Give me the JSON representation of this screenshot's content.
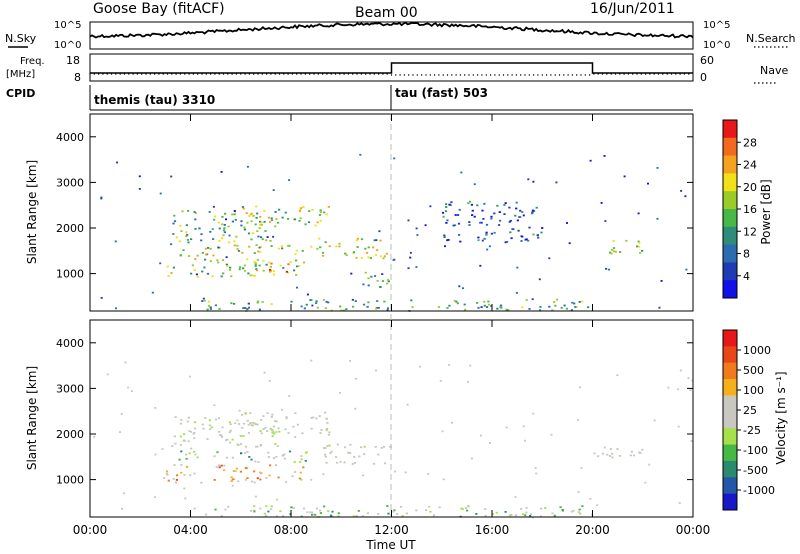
{
  "header": {
    "station": "Goose Bay (fitACF)",
    "beam": "Beam 00",
    "date": "16/Jun/2011"
  },
  "nsky_panel": {
    "left_label": "N.Sky",
    "left_ticks": [
      "10^5",
      "10^0"
    ],
    "right_ticks": [
      "10^5",
      "10^0"
    ],
    "right_label": "N.Search"
  },
  "freq_panel": {
    "left_label_1": "Freq.",
    "left_label_2": "[MHz]",
    "left_ticks": [
      "18",
      "8"
    ],
    "right_ticks": [
      "60",
      "0"
    ],
    "right_label": "Nave"
  },
  "cpid_panel": {
    "label": "CPID",
    "program_1": "themis (tau) 3310",
    "program_2": "tau (fast) 503"
  },
  "chart_data": [
    {
      "type": "heatmap",
      "title": "",
      "ylabel": "Slant Range [km]",
      "ylim": [
        180,
        4500
      ],
      "y_ticks": [
        "1000",
        "2000",
        "3000",
        "4000"
      ],
      "colorbar_label": "Power [dB]",
      "colorbar_ticks": [
        "28",
        "24",
        "20",
        "16",
        "12",
        "8",
        "4"
      ],
      "colorbar_colors": [
        "#1010e8",
        "#1f3cb4",
        "#2b6bb0",
        "#2f8c7a",
        "#48b848",
        "#9acb2a",
        "#f2e01a",
        "#f5a21e",
        "#f26a1e",
        "#e81818"
      ],
      "regions": [
        {
          "t_start": 3.2,
          "t_end": 7.5,
          "r_start": 1700,
          "r_end": 2400,
          "level": 0.45
        },
        {
          "t_start": 6.0,
          "t_end": 9.5,
          "r_start": 2000,
          "r_end": 2500,
          "level": 0.55
        },
        {
          "t_start": 9.0,
          "t_end": 12.0,
          "r_start": 1350,
          "r_end": 1800,
          "level": 0.6
        },
        {
          "t_start": 3.5,
          "t_end": 9.0,
          "r_start": 1400,
          "r_end": 1650,
          "level": 0.6
        },
        {
          "t_start": 3.0,
          "t_end": 8.5,
          "r_start": 950,
          "r_end": 1350,
          "level": 0.5
        },
        {
          "t_start": 6.5,
          "t_end": 8.0,
          "r_start": 1050,
          "r_end": 1350,
          "level": 0.75
        },
        {
          "t_start": 10.5,
          "t_end": 12.0,
          "r_start": 700,
          "r_end": 1050,
          "level": 0.4
        },
        {
          "t_start": 20.0,
          "t_end": 22.0,
          "r_start": 1450,
          "r_end": 1750,
          "level": 0.55
        },
        {
          "t_start": 14.0,
          "t_end": 18.0,
          "r_start": 1700,
          "r_end": 2600,
          "level": 0.2
        },
        {
          "t_start": 4.5,
          "t_end": 20.0,
          "r_start": 200,
          "r_end": 450,
          "level": 0.4
        }
      ]
    },
    {
      "type": "heatmap",
      "title": "",
      "ylabel": "Slant Range [km]",
      "ylim": [
        180,
        4500
      ],
      "y_ticks": [
        "1000",
        "2000",
        "3000",
        "4000"
      ],
      "colorbar_label": "Velocity [m s⁻¹]",
      "colorbar_ticks": [
        "1000",
        "500",
        "100",
        "25",
        "-25",
        "-100",
        "-500",
        "-1000"
      ],
      "colorbar_colors": [
        "#1818c8",
        "#2356a8",
        "#2a8a6e",
        "#45b845",
        "#a6e04a",
        "#c8c8c0",
        "#c8c8c0",
        "#f5b01e",
        "#f27a1e",
        "#e84818",
        "#e81818"
      ],
      "regions": [
        {
          "t_start": 3.2,
          "t_end": 7.5,
          "r_start": 1700,
          "r_end": 2400,
          "level": 0.5
        },
        {
          "t_start": 6.0,
          "t_end": 9.5,
          "r_start": 2000,
          "r_end": 2500,
          "level": 0.5
        },
        {
          "t_start": 9.0,
          "t_end": 12.0,
          "r_start": 1350,
          "r_end": 1800,
          "level": 0.5
        },
        {
          "t_start": 3.5,
          "t_end": 9.0,
          "r_start": 1400,
          "r_end": 1650,
          "level": 0.3
        },
        {
          "t_start": 3.0,
          "t_end": 8.5,
          "r_start": 950,
          "r_end": 1350,
          "level": 0.75
        },
        {
          "t_start": 20.0,
          "t_end": 22.0,
          "r_start": 1450,
          "r_end": 1750,
          "level": 0.5
        },
        {
          "t_start": 4.5,
          "t_end": 20.0,
          "r_start": 200,
          "r_end": 450,
          "level": 0.35
        }
      ]
    }
  ],
  "x_axis": {
    "xlabel": "Time UT",
    "ticks": [
      "00:00",
      "04:00",
      "08:00",
      "12:00",
      "16:00",
      "20:00",
      "00:00"
    ],
    "xlim": [
      0,
      24
    ]
  }
}
